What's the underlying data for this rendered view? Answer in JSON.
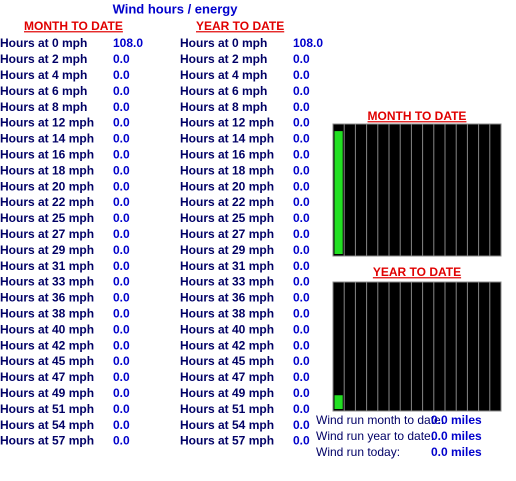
{
  "title": "Wind hours / energy",
  "month": {
    "heading": "MONTH TO DATE",
    "rows": [
      {
        "label": "Hours at 0 mph",
        "value": "108.0"
      },
      {
        "label": "Hours at 2 mph",
        "value": "0.0"
      },
      {
        "label": "Hours at 4 mph",
        "value": "0.0"
      },
      {
        "label": "Hours at 6 mph",
        "value": "0.0"
      },
      {
        "label": "Hours at 8 mph",
        "value": "0.0"
      },
      {
        "label": "Hours at 12 mph",
        "value": "0.0"
      },
      {
        "label": "Hours at 14 mph",
        "value": "0.0"
      },
      {
        "label": "Hours at 16 mph",
        "value": "0.0"
      },
      {
        "label": "Hours at 18 mph",
        "value": "0.0"
      },
      {
        "label": "Hours at 20 mph",
        "value": "0.0"
      },
      {
        "label": "Hours at 22 mph",
        "value": "0.0"
      },
      {
        "label": "Hours at 25 mph",
        "value": "0.0"
      },
      {
        "label": "Hours at 27 mph",
        "value": "0.0"
      },
      {
        "label": "Hours at 29 mph",
        "value": "0.0"
      },
      {
        "label": "Hours at 31 mph",
        "value": "0.0"
      },
      {
        "label": "Hours at 33 mph",
        "value": "0.0"
      },
      {
        "label": "Hours at 36 mph",
        "value": "0.0"
      },
      {
        "label": "Hours at 38 mph",
        "value": "0.0"
      },
      {
        "label": "Hours at 40 mph",
        "value": "0.0"
      },
      {
        "label": "Hours at 42 mph",
        "value": "0.0"
      },
      {
        "label": "Hours at 45 mph",
        "value": "0.0"
      },
      {
        "label": "Hours at 47 mph",
        "value": "0.0"
      },
      {
        "label": "Hours at 49 mph",
        "value": "0.0"
      },
      {
        "label": "Hours at 51 mph",
        "value": "0.0"
      },
      {
        "label": "Hours at 54 mph",
        "value": "0.0"
      },
      {
        "label": "Hours at 57 mph",
        "value": "0.0"
      }
    ]
  },
  "year": {
    "heading": "YEAR TO DATE",
    "rows": [
      {
        "label": "Hours at 0 mph",
        "value": "108.0"
      },
      {
        "label": "Hours at 2 mph",
        "value": "0.0"
      },
      {
        "label": "Hours at 4 mph",
        "value": "0.0"
      },
      {
        "label": "Hours at 6 mph",
        "value": "0.0"
      },
      {
        "label": "Hours at 8 mph",
        "value": "0.0"
      },
      {
        "label": "Hours at 12 mph",
        "value": "0.0"
      },
      {
        "label": "Hours at 14 mph",
        "value": "0.0"
      },
      {
        "label": "Hours at 16 mph",
        "value": "0.0"
      },
      {
        "label": "Hours at 18 mph",
        "value": "0.0"
      },
      {
        "label": "Hours at 20 mph",
        "value": "0.0"
      },
      {
        "label": "Hours at 22 mph",
        "value": "0.0"
      },
      {
        "label": "Hours at 25 mph",
        "value": "0.0"
      },
      {
        "label": "Hours at 27 mph",
        "value": "0.0"
      },
      {
        "label": "Hours at 29 mph",
        "value": "0.0"
      },
      {
        "label": "Hours at 31 mph",
        "value": "0.0"
      },
      {
        "label": "Hours at 33 mph",
        "value": "0.0"
      },
      {
        "label": "Hours at 36 mph",
        "value": "0.0"
      },
      {
        "label": "Hours at 38 mph",
        "value": "0.0"
      },
      {
        "label": "Hours at 40 mph",
        "value": "0.0"
      },
      {
        "label": "Hours at 42 mph",
        "value": "0.0"
      },
      {
        "label": "Hours at 45 mph",
        "value": "0.0"
      },
      {
        "label": "Hours at 47 mph",
        "value": "0.0"
      },
      {
        "label": "Hours at 49 mph",
        "value": "0.0"
      },
      {
        "label": "Hours at 51 mph",
        "value": "0.0"
      },
      {
        "label": "Hours at 54 mph",
        "value": "0.0"
      },
      {
        "label": "Hours at 57 mph",
        "value": "0.0"
      }
    ]
  },
  "graphs": [
    {
      "title": "MONTH TO DATE",
      "values": [
        0.96,
        0,
        0,
        0,
        0,
        0,
        0,
        0,
        0,
        0,
        0,
        0,
        0,
        0,
        0
      ],
      "color": "#22e022"
    },
    {
      "title": "YEAR TO DATE",
      "values": [
        0.11,
        0,
        0,
        0,
        0,
        0,
        0,
        0,
        0,
        0,
        0,
        0,
        0,
        0,
        0
      ],
      "color": "#22e022"
    }
  ],
  "wind_run": [
    {
      "label": "Wind run month to date:",
      "value": "0.0 miles"
    },
    {
      "label": "Wind run year to date:",
      "value": "0.0 miles"
    },
    {
      "label": "Wind run today:",
      "value": "0.0 miles"
    }
  ]
}
